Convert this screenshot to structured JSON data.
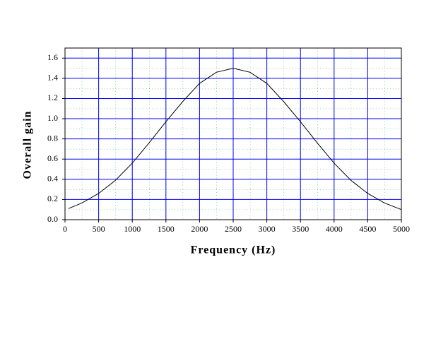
{
  "chart_data": {
    "type": "line",
    "x_label": "Frequency (Hz)",
    "y_label": "Overall gain",
    "x": [
      50,
      250,
      500,
      750,
      1000,
      1250,
      1500,
      1750,
      2000,
      2250,
      2500,
      2750,
      3000,
      3250,
      3500,
      3750,
      4000,
      4250,
      4500,
      4750,
      5000
    ],
    "series": [
      {
        "name": "Overall gain",
        "color": "#000000",
        "values": [
          0.11,
          0.165,
          0.26,
          0.39,
          0.56,
          0.76,
          0.97,
          1.17,
          1.35,
          1.46,
          1.5,
          1.46,
          1.35,
          1.17,
          0.97,
          0.76,
          0.56,
          0.39,
          0.26,
          0.165,
          0.1
        ]
      }
    ],
    "xlim": [
      0,
      5000
    ],
    "xticks": [
      0,
      500,
      1000,
      1500,
      2000,
      2500,
      3000,
      3500,
      4000,
      4500,
      5000
    ],
    "ylim": [
      0,
      1.7
    ],
    "yticks": [
      {
        "value": 0,
        "label": "0.0"
      },
      0.2,
      0.4,
      0.6,
      0.8,
      {
        "value": 1,
        "label": "1.0"
      },
      1.2,
      1.4,
      1.6
    ],
    "grid": true,
    "grid_color": "#0000ff",
    "minor_grid_color": "#33aa33"
  }
}
